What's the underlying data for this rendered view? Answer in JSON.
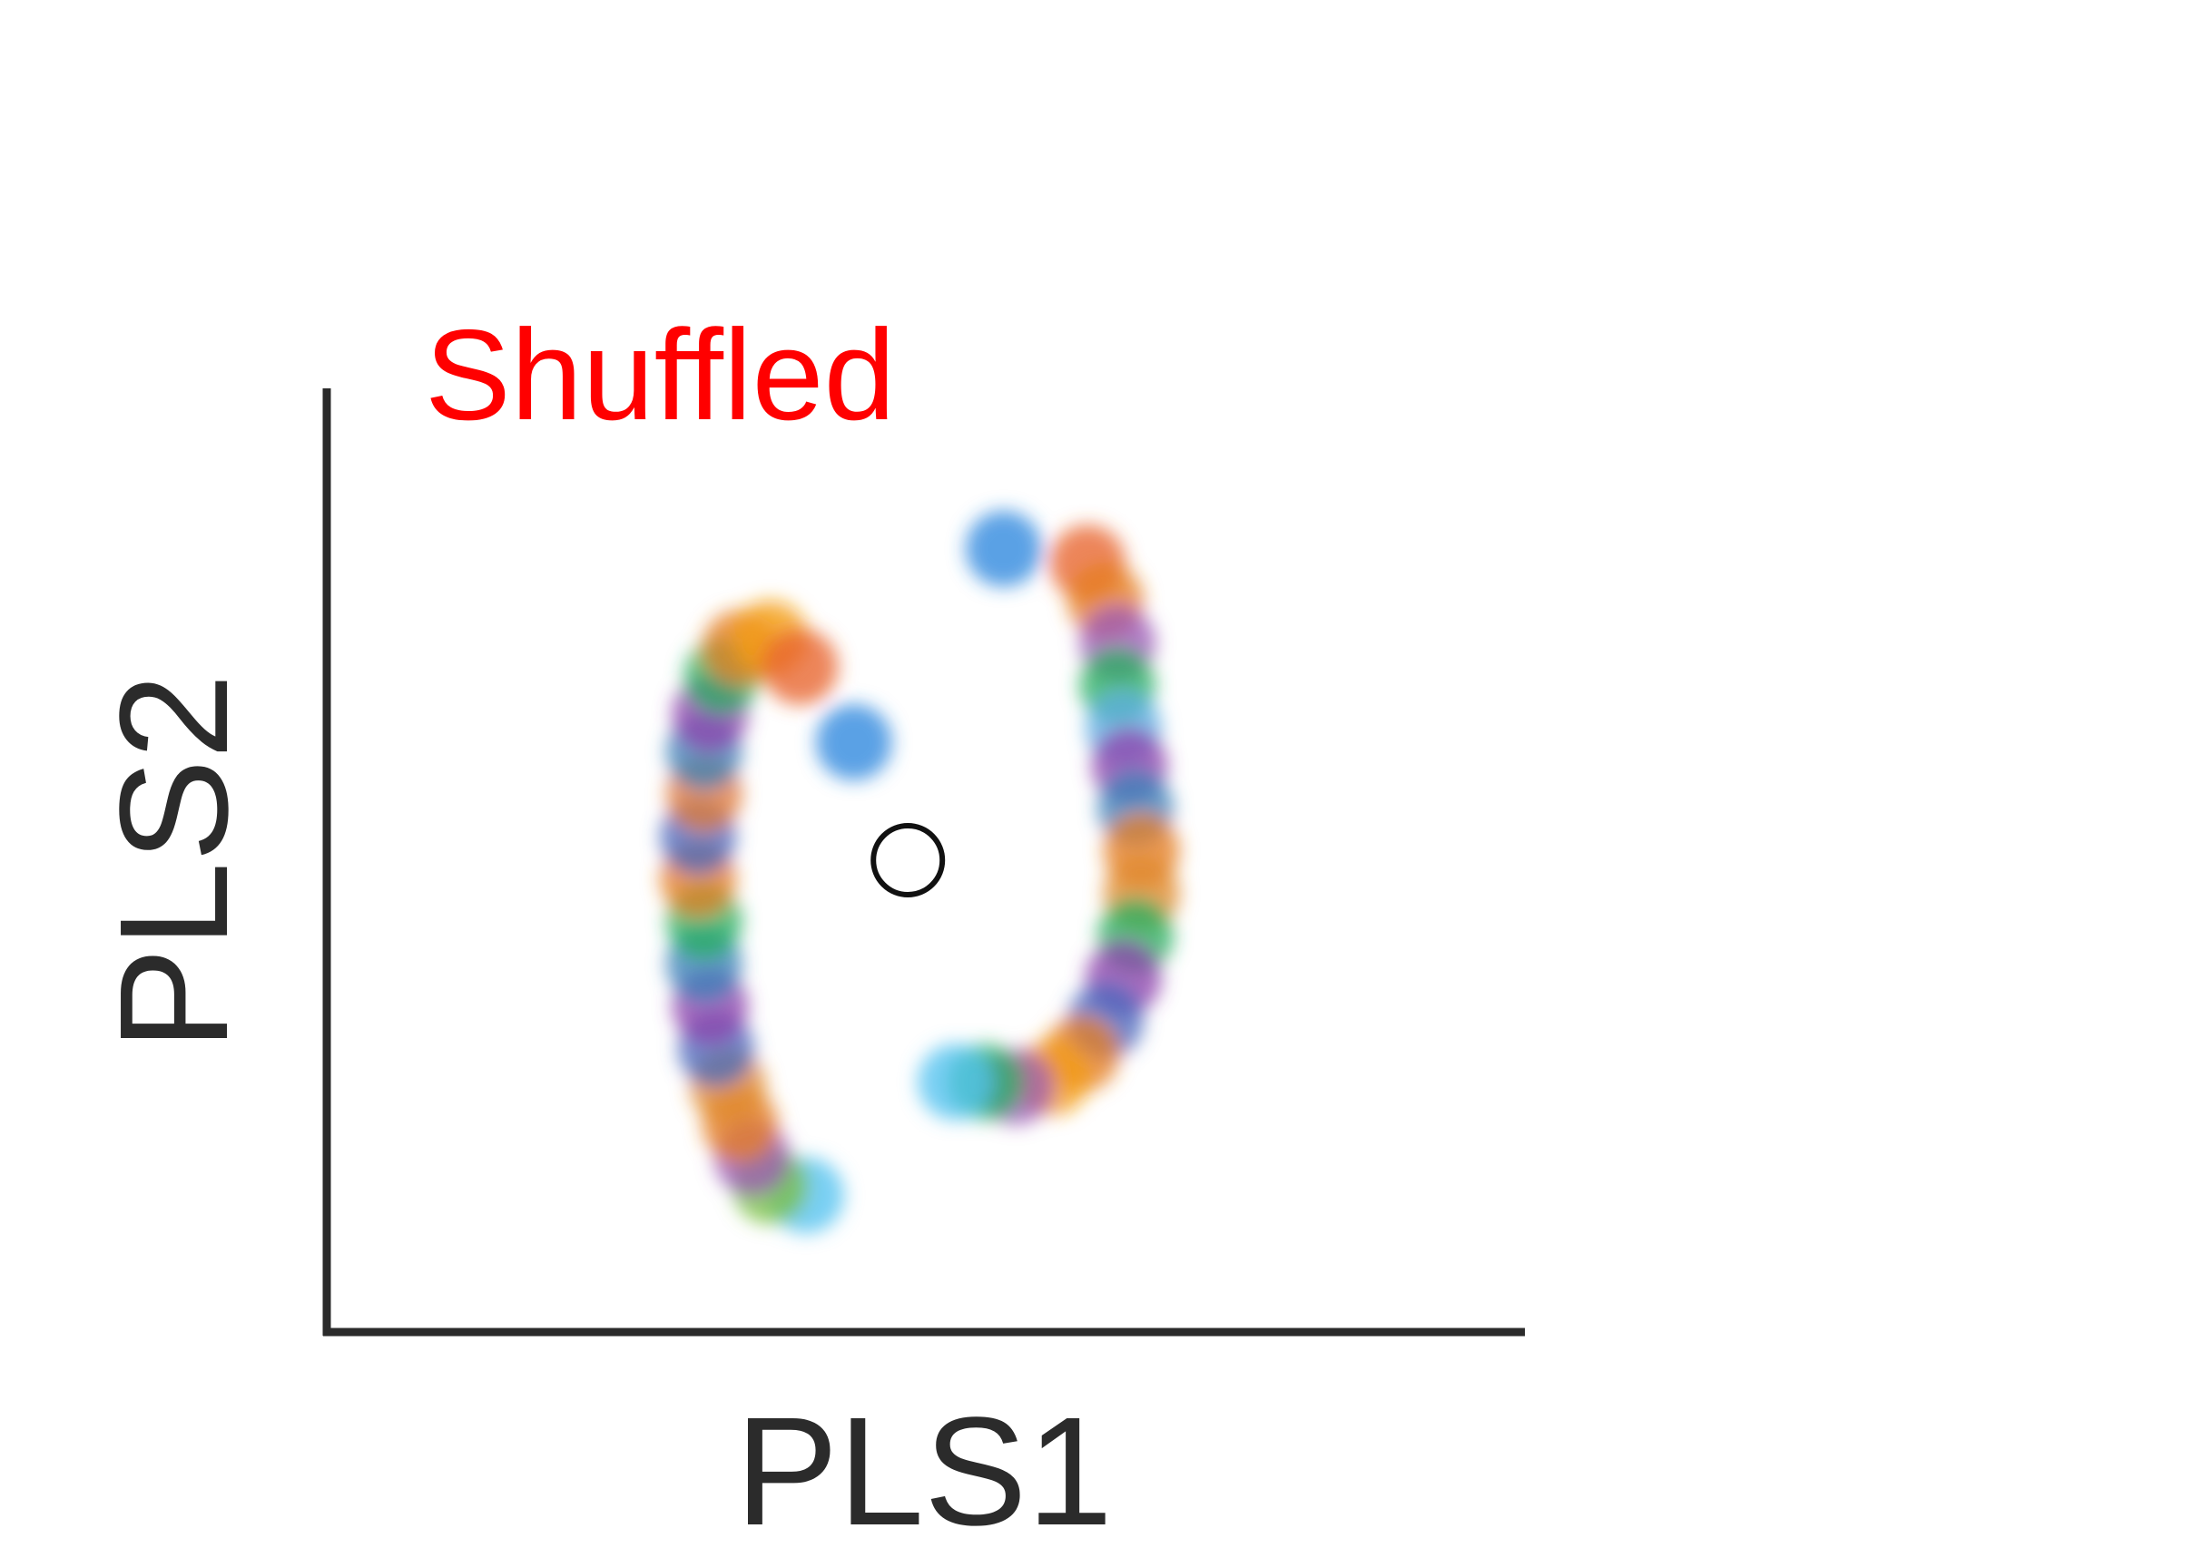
{
  "chart_data": {
    "type": "scatter",
    "title": "",
    "xlabel": "PLS1",
    "ylabel": "PLS2",
    "xlim": [
      -1.0,
      1.0
    ],
    "ylim": [
      -1.0,
      1.0
    ],
    "grid": false,
    "legend": "none",
    "ticks_shown": false,
    "annotations": [
      {
        "text": "Shuffled",
        "color": "#ff0000"
      }
    ],
    "center_marker": {
      "x": -0.03,
      "y": 0.0,
      "style": "open-circle",
      "color": "#111111"
    },
    "series": [
      {
        "values": [
          {
            "x": -0.2,
            "y": -0.71,
            "color": "#52c2f0"
          },
          {
            "x": -0.26,
            "y": -0.69,
            "color": "#7bc043"
          },
          {
            "x": -0.29,
            "y": -0.63,
            "color": "#9b59b6"
          },
          {
            "x": -0.31,
            "y": -0.56,
            "color": "#e67e22"
          },
          {
            "x": -0.33,
            "y": -0.48,
            "color": "#e08a2c"
          },
          {
            "x": -0.35,
            "y": -0.4,
            "color": "#4a69bd"
          },
          {
            "x": -0.36,
            "y": -0.31,
            "color": "#8e44ad"
          },
          {
            "x": -0.37,
            "y": -0.22,
            "color": "#3b82b8"
          },
          {
            "x": -0.37,
            "y": -0.13,
            "color": "#27ae60"
          },
          {
            "x": -0.38,
            "y": -0.04,
            "color": "#e67e22"
          },
          {
            "x": -0.38,
            "y": 0.05,
            "color": "#4a69bd"
          },
          {
            "x": -0.37,
            "y": 0.14,
            "color": "#e07b39"
          },
          {
            "x": -0.37,
            "y": 0.23,
            "color": "#3b82b8"
          },
          {
            "x": -0.36,
            "y": 0.31,
            "color": "#8e44ad"
          },
          {
            "x": -0.34,
            "y": 0.39,
            "color": "#27ae60"
          },
          {
            "x": -0.31,
            "y": 0.45,
            "color": "#e67e22"
          },
          {
            "x": -0.26,
            "y": 0.47,
            "color": "#f39c12"
          },
          {
            "x": -0.21,
            "y": 0.41,
            "color": "#e8632b"
          },
          {
            "x": -0.12,
            "y": 0.25,
            "color": "#2e86de"
          },
          {
            "x": 0.13,
            "y": 0.66,
            "color": "#2e86de"
          },
          {
            "x": 0.27,
            "y": 0.63,
            "color": "#e8632b"
          },
          {
            "x": 0.3,
            "y": 0.55,
            "color": "#e67e22"
          },
          {
            "x": 0.32,
            "y": 0.46,
            "color": "#9b59b6"
          },
          {
            "x": 0.32,
            "y": 0.37,
            "color": "#27ae60"
          },
          {
            "x": 0.33,
            "y": 0.28,
            "color": "#5dade2"
          },
          {
            "x": 0.34,
            "y": 0.2,
            "color": "#8e44ad"
          },
          {
            "x": 0.35,
            "y": 0.11,
            "color": "#3b82b8"
          },
          {
            "x": 0.36,
            "y": 0.02,
            "color": "#e67e22"
          },
          {
            "x": 0.36,
            "y": -0.07,
            "color": "#e08a2c"
          },
          {
            "x": 0.35,
            "y": -0.16,
            "color": "#27ae60"
          },
          {
            "x": 0.33,
            "y": -0.25,
            "color": "#8e44ad"
          },
          {
            "x": 0.3,
            "y": -0.34,
            "color": "#4a69bd"
          },
          {
            "x": 0.26,
            "y": -0.41,
            "color": "#e67e22"
          },
          {
            "x": 0.21,
            "y": -0.46,
            "color": "#f39c12"
          },
          {
            "x": 0.15,
            "y": -0.48,
            "color": "#9b59b6"
          },
          {
            "x": 0.1,
            "y": -0.47,
            "color": "#27ae60"
          },
          {
            "x": 0.05,
            "y": -0.47,
            "color": "#52c2f0"
          }
        ]
      }
    ]
  }
}
